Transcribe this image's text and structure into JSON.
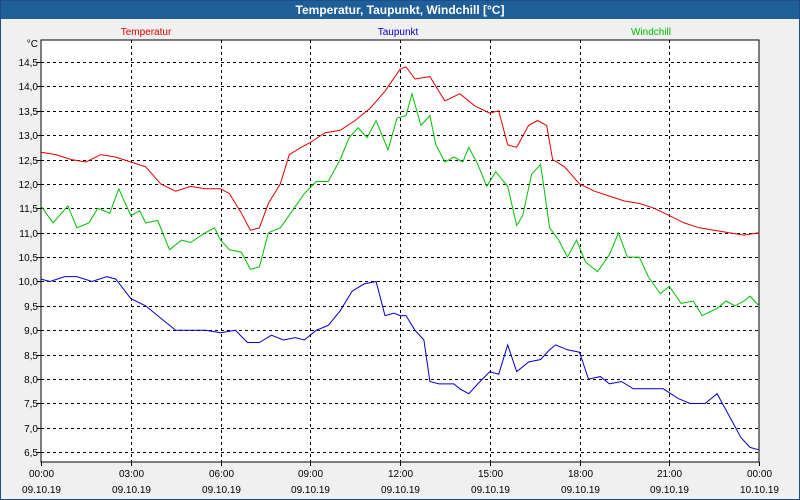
{
  "window": {
    "title": "Temperatur, Taupunkt, Windchill [°C]"
  },
  "chart_data": {
    "type": "line",
    "unit": "°C",
    "ylim": [
      6.3,
      14.95
    ],
    "y_ticks": [
      6.5,
      7.0,
      7.5,
      8.0,
      8.5,
      9.0,
      9.5,
      10.0,
      10.5,
      11.0,
      11.5,
      12.0,
      12.5,
      13.0,
      13.5,
      14.0,
      14.5
    ],
    "y_tick_labels": [
      "6,5",
      "7,0",
      "7,5",
      "8,0",
      "8,5",
      "9,0",
      "9,5",
      "10,0",
      "10,5",
      "11,0",
      "11,5",
      "12,0",
      "12,5",
      "13,0",
      "13,5",
      "14,0",
      "14,5"
    ],
    "xlim": [
      0,
      24
    ],
    "x_ticks": [
      {
        "h": 0,
        "time": "00:00",
        "date": "09.10.19"
      },
      {
        "h": 3,
        "time": "03:00",
        "date": "09.10.19"
      },
      {
        "h": 6,
        "time": "06:00",
        "date": "09.10.19"
      },
      {
        "h": 9,
        "time": "09:00",
        "date": "09.10.19"
      },
      {
        "h": 12,
        "time": "12:00",
        "date": "09.10.19"
      },
      {
        "h": 15,
        "time": "15:00",
        "date": "09.10.19"
      },
      {
        "h": 18,
        "time": "18:00",
        "date": "09.10.19"
      },
      {
        "h": 21,
        "time": "21:00",
        "date": "09.10.19"
      },
      {
        "h": 24,
        "time": "00:00",
        "date": "10.10.19"
      }
    ],
    "grid": true,
    "series": [
      {
        "name": "Temperatur",
        "color": "#e00000",
        "points": [
          [
            0,
            12.65
          ],
          [
            0.5,
            12.6
          ],
          [
            1,
            12.5
          ],
          [
            1.5,
            12.45
          ],
          [
            2,
            12.6
          ],
          [
            2.5,
            12.55
          ],
          [
            3,
            12.45
          ],
          [
            3.5,
            12.35
          ],
          [
            4,
            12.0
          ],
          [
            4.5,
            11.85
          ],
          [
            5,
            11.95
          ],
          [
            5.5,
            11.9
          ],
          [
            6,
            11.9
          ],
          [
            6.3,
            11.8
          ],
          [
            6.7,
            11.4
          ],
          [
            7,
            11.05
          ],
          [
            7.3,
            11.1
          ],
          [
            7.6,
            11.6
          ],
          [
            8,
            12.0
          ],
          [
            8.3,
            12.6
          ],
          [
            8.7,
            12.75
          ],
          [
            9,
            12.85
          ],
          [
            9.5,
            13.05
          ],
          [
            10,
            13.1
          ],
          [
            10.5,
            13.3
          ],
          [
            11,
            13.55
          ],
          [
            11.5,
            13.9
          ],
          [
            12,
            14.35
          ],
          [
            12.2,
            14.4
          ],
          [
            12.5,
            14.15
          ],
          [
            13,
            14.2
          ],
          [
            13.5,
            13.7
          ],
          [
            14,
            13.85
          ],
          [
            14.5,
            13.6
          ],
          [
            15,
            13.45
          ],
          [
            15.3,
            13.5
          ],
          [
            15.6,
            12.8
          ],
          [
            15.9,
            12.75
          ],
          [
            16.3,
            13.2
          ],
          [
            16.6,
            13.3
          ],
          [
            16.9,
            13.2
          ],
          [
            17.1,
            12.5
          ],
          [
            17.5,
            12.35
          ],
          [
            18,
            12.0
          ],
          [
            18.5,
            11.85
          ],
          [
            19,
            11.75
          ],
          [
            19.5,
            11.65
          ],
          [
            20,
            11.6
          ],
          [
            20.5,
            11.5
          ],
          [
            21,
            11.35
          ],
          [
            21.5,
            11.2
          ],
          [
            22,
            11.1
          ],
          [
            22.5,
            11.05
          ],
          [
            23,
            11.0
          ],
          [
            23.5,
            10.95
          ],
          [
            24,
            11.0
          ]
        ]
      },
      {
        "name": "Taupunkt",
        "color": "#0000cc",
        "points": [
          [
            0,
            10.05
          ],
          [
            0.3,
            10.0
          ],
          [
            0.8,
            10.1
          ],
          [
            1.2,
            10.1
          ],
          [
            1.7,
            10.0
          ],
          [
            2.2,
            10.1
          ],
          [
            2.5,
            10.05
          ],
          [
            3,
            9.65
          ],
          [
            3.5,
            9.5
          ],
          [
            4,
            9.25
          ],
          [
            4.5,
            9.0
          ],
          [
            5,
            9.0
          ],
          [
            5.5,
            9.0
          ],
          [
            6,
            8.95
          ],
          [
            6.5,
            9.0
          ],
          [
            6.9,
            8.75
          ],
          [
            7.3,
            8.75
          ],
          [
            7.7,
            8.9
          ],
          [
            8.1,
            8.8
          ],
          [
            8.5,
            8.85
          ],
          [
            8.8,
            8.8
          ],
          [
            9.2,
            9.0
          ],
          [
            9.6,
            9.1
          ],
          [
            10,
            9.4
          ],
          [
            10.4,
            9.8
          ],
          [
            10.8,
            9.95
          ],
          [
            11.2,
            10.0
          ],
          [
            11.5,
            9.3
          ],
          [
            11.8,
            9.35
          ],
          [
            12,
            9.3
          ],
          [
            12.2,
            9.3
          ],
          [
            12.5,
            9.0
          ],
          [
            12.8,
            8.8
          ],
          [
            13,
            7.95
          ],
          [
            13.3,
            7.9
          ],
          [
            13.8,
            7.9
          ],
          [
            14,
            7.8
          ],
          [
            14.3,
            7.7
          ],
          [
            14.6,
            7.9
          ],
          [
            15,
            8.15
          ],
          [
            15.3,
            8.1
          ],
          [
            15.6,
            8.7
          ],
          [
            15.9,
            8.15
          ],
          [
            16.3,
            8.35
          ],
          [
            16.7,
            8.4
          ],
          [
            17,
            8.6
          ],
          [
            17.2,
            8.7
          ],
          [
            17.6,
            8.6
          ],
          [
            18,
            8.55
          ],
          [
            18.3,
            8.0
          ],
          [
            18.7,
            8.05
          ],
          [
            19,
            7.9
          ],
          [
            19.4,
            7.95
          ],
          [
            19.8,
            7.8
          ],
          [
            20.3,
            7.8
          ],
          [
            20.8,
            7.8
          ],
          [
            21.3,
            7.6
          ],
          [
            21.7,
            7.5
          ],
          [
            22.2,
            7.5
          ],
          [
            22.6,
            7.7
          ],
          [
            23,
            7.25
          ],
          [
            23.4,
            6.8
          ],
          [
            23.7,
            6.6
          ],
          [
            24,
            6.55
          ]
        ]
      },
      {
        "name": "Windchill",
        "color": "#00c000",
        "points": [
          [
            0,
            11.55
          ],
          [
            0.4,
            11.2
          ],
          [
            0.9,
            11.55
          ],
          [
            1.2,
            11.1
          ],
          [
            1.6,
            11.2
          ],
          [
            1.9,
            11.5
          ],
          [
            2.3,
            11.4
          ],
          [
            2.6,
            11.9
          ],
          [
            3,
            11.35
          ],
          [
            3.3,
            11.45
          ],
          [
            3.5,
            11.2
          ],
          [
            3.9,
            11.25
          ],
          [
            4.3,
            10.65
          ],
          [
            4.7,
            10.85
          ],
          [
            5,
            10.8
          ],
          [
            5.5,
            11.0
          ],
          [
            5.8,
            11.1
          ],
          [
            6,
            10.85
          ],
          [
            6.3,
            10.65
          ],
          [
            6.7,
            10.6
          ],
          [
            7,
            10.25
          ],
          [
            7.3,
            10.3
          ],
          [
            7.6,
            11.0
          ],
          [
            8,
            11.1
          ],
          [
            8.4,
            11.45
          ],
          [
            8.8,
            11.8
          ],
          [
            9.2,
            12.05
          ],
          [
            9.6,
            12.05
          ],
          [
            10,
            12.5
          ],
          [
            10.3,
            12.95
          ],
          [
            10.6,
            13.15
          ],
          [
            10.9,
            12.95
          ],
          [
            11.2,
            13.3
          ],
          [
            11.6,
            12.7
          ],
          [
            11.9,
            13.35
          ],
          [
            12.2,
            13.4
          ],
          [
            12.4,
            13.85
          ],
          [
            12.7,
            13.2
          ],
          [
            13,
            13.4
          ],
          [
            13.2,
            12.8
          ],
          [
            13.5,
            12.45
          ],
          [
            13.8,
            12.55
          ],
          [
            14.1,
            12.45
          ],
          [
            14.3,
            12.75
          ],
          [
            14.6,
            12.4
          ],
          [
            14.9,
            11.95
          ],
          [
            15.2,
            12.25
          ],
          [
            15.6,
            11.95
          ],
          [
            15.9,
            11.15
          ],
          [
            16.1,
            11.35
          ],
          [
            16.4,
            12.2
          ],
          [
            16.7,
            12.4
          ],
          [
            17,
            11.1
          ],
          [
            17.3,
            10.85
          ],
          [
            17.6,
            10.5
          ],
          [
            17.9,
            10.85
          ],
          [
            18.2,
            10.4
          ],
          [
            18.6,
            10.2
          ],
          [
            19,
            10.55
          ],
          [
            19.3,
            11.0
          ],
          [
            19.6,
            10.5
          ],
          [
            20,
            10.5
          ],
          [
            20.3,
            10.1
          ],
          [
            20.7,
            9.75
          ],
          [
            21,
            9.9
          ],
          [
            21.4,
            9.55
          ],
          [
            21.8,
            9.6
          ],
          [
            22.1,
            9.3
          ],
          [
            22.6,
            9.45
          ],
          [
            22.9,
            9.6
          ],
          [
            23.2,
            9.5
          ],
          [
            23.5,
            9.6
          ],
          [
            23.7,
            9.7
          ],
          [
            24,
            9.5
          ]
        ]
      }
    ]
  }
}
